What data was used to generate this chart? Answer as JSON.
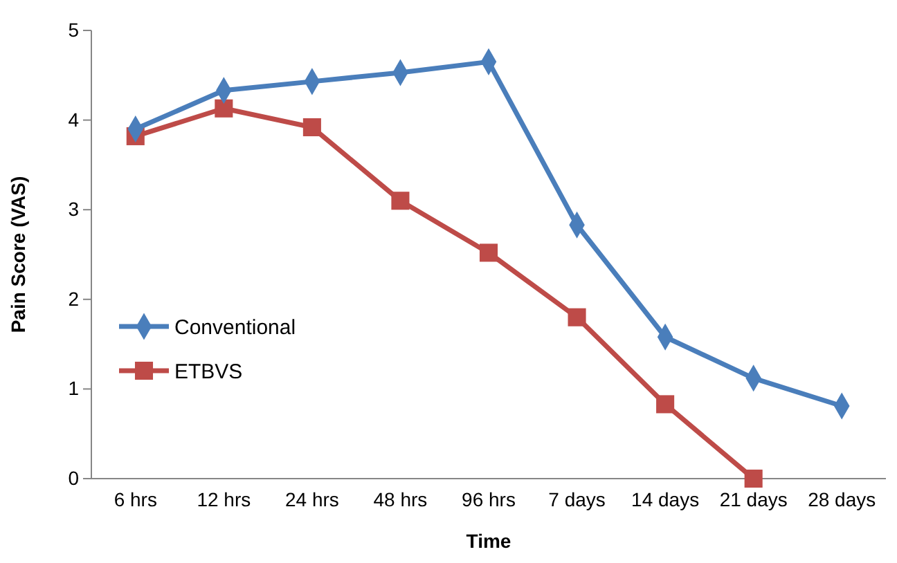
{
  "chart_data": {
    "type": "line",
    "xlabel": "Time",
    "ylabel": "Pain Score (VAS)",
    "categories": [
      "6 hrs",
      "12 hrs",
      "24 hrs",
      "48 hrs",
      "96 hrs",
      "7 days",
      "14 days",
      "21 days",
      "28 days"
    ],
    "series": [
      {
        "name": "Conventional",
        "color": "#4a7ebb",
        "marker": "diamond",
        "values": [
          3.9,
          4.33,
          4.43,
          4.53,
          4.65,
          2.83,
          1.58,
          1.12,
          0.81
        ]
      },
      {
        "name": "ETBVS",
        "color": "#be4b48",
        "marker": "square",
        "values": [
          3.82,
          4.13,
          3.92,
          3.1,
          2.52,
          1.8,
          0.83,
          0,
          null
        ]
      }
    ],
    "ylim": [
      0,
      5
    ],
    "yticks": [
      0,
      1,
      2,
      3,
      4,
      5
    ],
    "grid": false,
    "legend": "bottom left",
    "line_style": "solid"
  }
}
